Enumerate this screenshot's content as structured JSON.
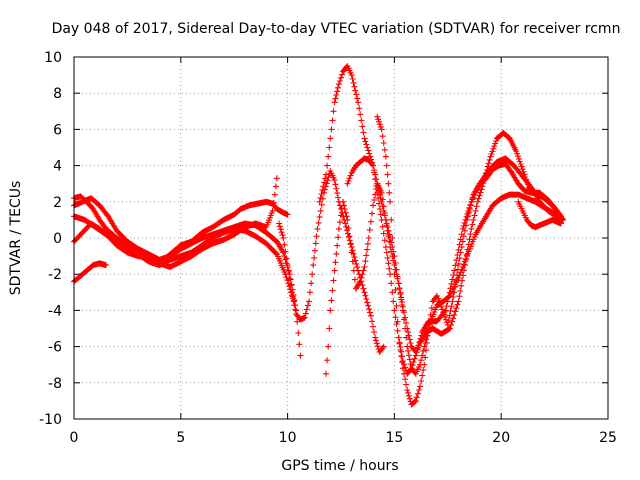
{
  "chart_data": {
    "type": "scatter",
    "title": "Day 048 of 2017, Sidereal Day-to-day VTEC variation (SDTVAR) for receiver rcmn",
    "xlabel": "GPS time / hours",
    "ylabel": "SDTVAR / TECUs",
    "xlim": [
      0,
      25
    ],
    "ylim": [
      -10,
      10
    ],
    "xticks": [
      "0",
      "5",
      "10",
      "15",
      "20",
      "25"
    ],
    "yticks": [
      "-10",
      "-8",
      "-6",
      "-4",
      "-2",
      "0",
      "2",
      "4",
      "6",
      "8",
      "10"
    ],
    "grid": true,
    "marker": "+",
    "color": "#ff0000",
    "series": [
      {
        "x": [
          0.0,
          0.3,
          0.6,
          0.9,
          1.2,
          1.5,
          2.0,
          2.5,
          3.0,
          3.5,
          3.8,
          4.2,
          4.6,
          5.0,
          5.5,
          6.0,
          6.5,
          7.0,
          7.5,
          7.8,
          8.2,
          8.6,
          9.0,
          9.3,
          9.5,
          9.8,
          10.0
        ],
        "y": [
          2.2,
          2.3,
          2.0,
          1.6,
          1.0,
          0.5,
          0.0,
          -0.4,
          -0.8,
          -1.0,
          -1.4,
          -1.2,
          -0.8,
          -0.4,
          -0.2,
          0.3,
          0.6,
          1.0,
          1.3,
          1.6,
          1.8,
          1.9,
          2.0,
          1.9,
          1.6,
          1.4,
          1.3
        ]
      },
      {
        "x": [
          0.0,
          0.4,
          0.8,
          1.2,
          1.6,
          2.0,
          2.5,
          3.0,
          3.5,
          4.0,
          4.5,
          5.0,
          5.5,
          6.0,
          6.5,
          7.0,
          7.5,
          8.0,
          8.5,
          9.0,
          9.5,
          9.8,
          10.1,
          10.4,
          10.6
        ],
        "y": [
          1.8,
          2.0,
          2.2,
          1.8,
          1.2,
          0.4,
          -0.2,
          -0.6,
          -0.9,
          -1.2,
          -1.0,
          -0.6,
          -0.3,
          0.0,
          0.2,
          0.4,
          0.6,
          0.8,
          0.7,
          0.3,
          -0.2,
          -0.8,
          -2.0,
          -4.0,
          -6.5
        ]
      },
      {
        "x": [
          0.0,
          0.5,
          1.0,
          1.5,
          2.0,
          2.5,
          3.0,
          3.5,
          4.0,
          4.5,
          5.0,
          5.5,
          6.0,
          6.5,
          7.0,
          7.5,
          8.0,
          8.5,
          9.0,
          9.5,
          9.9,
          10.3
        ],
        "y": [
          1.2,
          1.0,
          0.6,
          0.2,
          -0.2,
          -0.6,
          -0.9,
          -1.3,
          -1.5,
          -1.2,
          -1.0,
          -0.8,
          -0.4,
          0.0,
          0.3,
          0.5,
          0.4,
          0.1,
          -0.3,
          -0.9,
          -2.0,
          -3.5
        ]
      },
      {
        "x": [
          0.0,
          0.4,
          0.8,
          1.2,
          1.6,
          2.0,
          2.5,
          3.0,
          3.5,
          4.0,
          4.5,
          5.0,
          5.5,
          6.0,
          6.5,
          7.0,
          7.5,
          8.0,
          8.5,
          9.0,
          9.3,
          9.5
        ],
        "y": [
          -0.2,
          0.3,
          0.8,
          0.5,
          0.1,
          -0.4,
          -0.8,
          -1.0,
          -1.1,
          -1.4,
          -1.6,
          -1.3,
          -1.0,
          -0.6,
          -0.3,
          -0.1,
          0.2,
          0.6,
          0.8,
          0.6,
          1.5,
          3.3
        ]
      },
      {
        "x": [
          0.0,
          0.3,
          0.6,
          0.9,
          1.2,
          1.5
        ],
        "y": [
          -2.4,
          -2.1,
          -1.8,
          -1.5,
          -1.4,
          -1.5
        ]
      },
      {
        "x": [
          9.6,
          9.8,
          10.0,
          10.2,
          10.4,
          10.6,
          10.8,
          11.0,
          11.2,
          11.4,
          11.7,
          12.0,
          12.2,
          12.4,
          12.7,
          13.0,
          13.3,
          13.6,
          13.9,
          14.1,
          14.3,
          14.5
        ],
        "y": [
          0.8,
          0.0,
          -1.5,
          -3.0,
          -4.2,
          -4.5,
          -4.4,
          -3.5,
          -1.5,
          0.5,
          2.5,
          3.7,
          3.2,
          2.0,
          0.8,
          -0.5,
          -1.8,
          -3.0,
          -4.3,
          -5.5,
          -6.3,
          -6.0
        ]
      },
      {
        "x": [
          11.8,
          11.9,
          12.0,
          12.2,
          12.4,
          12.6,
          12.8,
          13.0,
          13.2,
          13.4,
          13.6,
          13.8,
          14.0,
          14.2,
          14.4,
          14.6,
          14.8,
          15.0,
          15.2,
          15.4,
          15.6,
          15.8,
          16.0,
          16.2,
          16.4,
          16.7,
          17.0,
          17.3,
          17.6,
          18.0,
          18.4,
          18.8,
          19.2,
          19.6,
          20.0,
          20.4,
          20.8,
          21.2,
          21.6,
          22.0,
          22.4,
          22.8
        ],
        "y": [
          -7.5,
          -6.0,
          -4.0,
          -1.8,
          0.5,
          2.0,
          1.0,
          -0.8,
          -2.8,
          -2.4,
          -1.6,
          0.0,
          1.8,
          3.0,
          2.5,
          1.0,
          -0.5,
          -1.5,
          -2.5,
          -4.0,
          -6.0,
          -7.2,
          -7.5,
          -7.0,
          -6.0,
          -4.6,
          -3.7,
          -3.5,
          -3.2,
          -2.2,
          -1.0,
          0.2,
          1.0,
          1.8,
          2.2,
          2.4,
          2.4,
          2.2,
          2.0,
          1.7,
          1.4,
          1.0
        ]
      },
      {
        "x": [
          11.5,
          11.8,
          12.0,
          12.2,
          12.4,
          12.6,
          12.8,
          13.0,
          13.3,
          13.6,
          14.0,
          14.2,
          14.4,
          14.6,
          14.8,
          15.0,
          15.2,
          15.4,
          15.6,
          15.8,
          16.0,
          16.3,
          16.6,
          17.0,
          17.4,
          17.8,
          18.2,
          18.6,
          19.0,
          19.4,
          19.8,
          20.2,
          20.6,
          21.0,
          21.4,
          21.8,
          22.2,
          22.6,
          22.9
        ],
        "y": [
          2.0,
          3.5,
          5.5,
          7.5,
          8.5,
          9.2,
          9.5,
          9.0,
          7.5,
          5.5,
          4.0,
          2.5,
          1.0,
          -0.5,
          -2.0,
          -4.0,
          -5.5,
          -6.8,
          -7.5,
          -7.2,
          -6.5,
          -5.2,
          -4.6,
          -4.6,
          -4.0,
          -1.8,
          0.5,
          2.0,
          3.0,
          3.7,
          4.2,
          4.4,
          4.0,
          3.4,
          2.8,
          2.0,
          1.5,
          1.2,
          1.0
        ]
      },
      {
        "x": [
          12.8,
          13.0,
          13.2,
          13.4,
          13.6,
          13.8,
          14.0,
          14.2,
          14.4,
          14.6,
          14.8,
          15.0,
          15.2,
          15.4,
          15.6,
          15.8,
          16.0,
          16.2,
          16.5,
          16.8,
          17.2,
          17.6,
          18.0,
          18.3,
          18.6,
          18.9,
          19.2,
          19.5,
          19.8,
          20.1,
          20.4,
          20.7,
          21.0,
          21.3,
          21.6,
          22.0,
          22.4,
          22.8
        ],
        "y": [
          3.0,
          3.6,
          4.0,
          4.2,
          4.4,
          4.3,
          4.0,
          3.0,
          2.0,
          1.0,
          0.0,
          -1.0,
          -2.5,
          -3.8,
          -5.0,
          -6.0,
          -6.3,
          -5.8,
          -5.2,
          -5.0,
          -5.3,
          -5.0,
          -3.5,
          -1.5,
          0.5,
          2.0,
          3.2,
          4.5,
          5.5,
          5.8,
          5.5,
          4.8,
          3.8,
          2.8,
          2.5,
          2.2,
          1.8,
          1.2
        ]
      },
      {
        "x": [
          14.2,
          14.4,
          14.6,
          14.8,
          15.0,
          15.2,
          15.4,
          15.6,
          15.8,
          16.0,
          16.2,
          16.4,
          16.6,
          16.8,
          17.0,
          17.2,
          17.5,
          17.8,
          18.1,
          18.4,
          18.7,
          19.0,
          19.3,
          19.6,
          19.9,
          20.2,
          20.5,
          20.8,
          21.1,
          21.4,
          21.8,
          22.2,
          22.6,
          22.9
        ],
        "y": [
          6.7,
          6.0,
          4.5,
          2.0,
          -2.0,
          -5.5,
          -7.2,
          -8.4,
          -9.2,
          -9.0,
          -8.2,
          -7.0,
          -5.0,
          -3.5,
          -3.2,
          -3.8,
          -4.8,
          -3.0,
          -0.8,
          1.0,
          2.4,
          3.0,
          3.3,
          3.8,
          4.0,
          4.1,
          3.6,
          3.0,
          2.6,
          2.5,
          2.5,
          2.1,
          1.5,
          1.0
        ]
      },
      {
        "x": [
          20.8,
          21.0,
          21.2,
          21.4,
          21.6,
          21.8,
          22.0,
          22.2,
          22.4,
          22.6,
          22.8
        ],
        "y": [
          2.0,
          1.5,
          1.0,
          0.7,
          0.6,
          0.7,
          0.8,
          0.9,
          1.0,
          0.9,
          0.8
        ]
      }
    ]
  }
}
